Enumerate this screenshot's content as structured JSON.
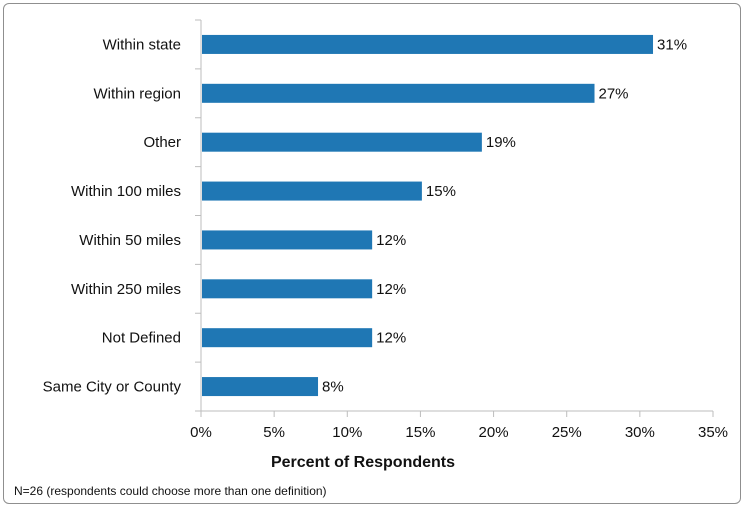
{
  "chart_data": {
    "type": "bar",
    "orientation": "horizontal",
    "categories": [
      "Within state",
      "Within region",
      "Other",
      "Within 100 miles",
      "Within 50 miles",
      "Within 250 miles",
      "Not Defined",
      "Same City or County"
    ],
    "values": [
      31,
      27,
      19,
      15,
      12,
      12,
      12,
      8
    ],
    "value_labels": [
      "31%",
      "27%",
      "19%",
      "15%",
      "12%",
      "12%",
      "12%",
      "8%"
    ],
    "plotted_values": [
      30.9,
      26.9,
      19.2,
      15.1,
      11.7,
      11.7,
      11.7,
      8.0
    ],
    "xlabel": "Percent of Respondents",
    "ylabel": "",
    "xlim": [
      0,
      35
    ],
    "xticks": [
      0,
      5,
      10,
      15,
      20,
      25,
      30,
      35
    ],
    "xtick_labels": [
      "0%",
      "5%",
      "10%",
      "15%",
      "20%",
      "25%",
      "30%",
      "35%"
    ],
    "note": "N=26 (respondents could choose more than one definition)",
    "bar_color": "#1f77b4",
    "grid": false
  }
}
